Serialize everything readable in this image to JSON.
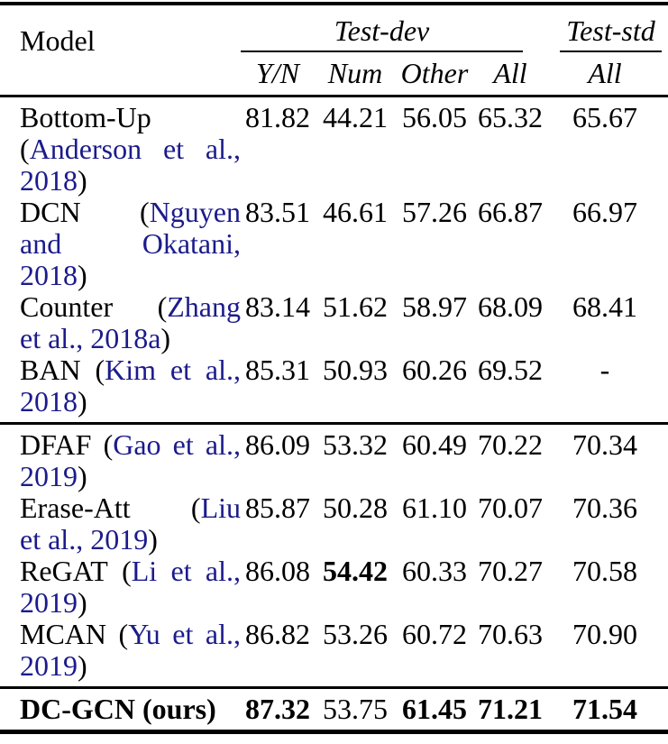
{
  "colors": {
    "background": "#ffffff",
    "text": "#000000",
    "citation_link": "#1b1b8c",
    "rule": "#000000"
  },
  "header": {
    "model_label": "Model",
    "groups": [
      {
        "label": "Test-dev",
        "columns": [
          "Y/N",
          "Num",
          "Other",
          "All"
        ]
      },
      {
        "label": "Test-std",
        "columns": [
          "All"
        ]
      }
    ]
  },
  "sections": [
    {
      "rows": [
        {
          "model_lines": [
            {
              "justify": true,
              "words": [
                [
                  {
                    "t": "Bottom-Up",
                    "cite": false
                  }
                ]
              ]
            },
            {
              "justify": true,
              "words": [
                [
                  {
                    "t": "(",
                    "cite": false
                  },
                  {
                    "t": "Anderson",
                    "cite": true
                  }
                ],
                [
                  {
                    "t": "et",
                    "cite": true
                  }
                ],
                [
                  {
                    "t": "al.,",
                    "cite": true
                  }
                ]
              ]
            },
            {
              "justify": false,
              "words": [
                [
                  {
                    "t": "2018",
                    "cite": true
                  },
                  {
                    "t": ")",
                    "cite": false
                  }
                ]
              ]
            }
          ],
          "bold_model": false,
          "values": [
            {
              "t": "81.82",
              "bold": false
            },
            {
              "t": "44.21",
              "bold": false
            },
            {
              "t": "56.05",
              "bold": false
            },
            {
              "t": "65.32",
              "bold": false
            },
            {
              "t": "65.67",
              "bold": false
            }
          ]
        },
        {
          "model_lines": [
            {
              "justify": true,
              "words": [
                [
                  {
                    "t": "DCN",
                    "cite": false
                  }
                ],
                [
                  {
                    "t": "(",
                    "cite": false
                  },
                  {
                    "t": "Nguyen",
                    "cite": true
                  }
                ]
              ]
            },
            {
              "justify": true,
              "words": [
                [
                  {
                    "t": "and",
                    "cite": true
                  }
                ],
                [
                  {
                    "t": "Okatani,",
                    "cite": true
                  }
                ]
              ]
            },
            {
              "justify": false,
              "words": [
                [
                  {
                    "t": "2018",
                    "cite": true
                  },
                  {
                    "t": ")",
                    "cite": false
                  }
                ]
              ]
            }
          ],
          "bold_model": false,
          "values": [
            {
              "t": "83.51",
              "bold": false
            },
            {
              "t": "46.61",
              "bold": false
            },
            {
              "t": "57.26",
              "bold": false
            },
            {
              "t": "66.87",
              "bold": false
            },
            {
              "t": "66.97",
              "bold": false
            }
          ]
        },
        {
          "model_lines": [
            {
              "justify": true,
              "words": [
                [
                  {
                    "t": "Counter",
                    "cite": false
                  }
                ],
                [
                  {
                    "t": "(",
                    "cite": false
                  },
                  {
                    "t": "Zhang",
                    "cite": true
                  }
                ]
              ]
            },
            {
              "justify": false,
              "words": [
                [
                  {
                    "t": "et",
                    "cite": true
                  }
                ],
                [
                  {
                    "t": "al.,",
                    "cite": true
                  }
                ],
                [
                  {
                    "t": "2018a",
                    "cite": true
                  },
                  {
                    "t": ")",
                    "cite": false
                  }
                ]
              ]
            }
          ],
          "bold_model": false,
          "values": [
            {
              "t": "83.14",
              "bold": false
            },
            {
              "t": "51.62",
              "bold": false
            },
            {
              "t": "58.97",
              "bold": false
            },
            {
              "t": "68.09",
              "bold": false
            },
            {
              "t": "68.41",
              "bold": false
            }
          ]
        },
        {
          "model_lines": [
            {
              "justify": true,
              "words": [
                [
                  {
                    "t": "BAN",
                    "cite": false
                  }
                ],
                [
                  {
                    "t": "(",
                    "cite": false
                  },
                  {
                    "t": "Kim",
                    "cite": true
                  }
                ],
                [
                  {
                    "t": "et",
                    "cite": true
                  }
                ],
                [
                  {
                    "t": "al.,",
                    "cite": true
                  }
                ]
              ]
            },
            {
              "justify": false,
              "words": [
                [
                  {
                    "t": "2018",
                    "cite": true
                  },
                  {
                    "t": ")",
                    "cite": false
                  }
                ]
              ]
            }
          ],
          "bold_model": false,
          "values": [
            {
              "t": "85.31",
              "bold": false
            },
            {
              "t": "50.93",
              "bold": false
            },
            {
              "t": "60.26",
              "bold": false
            },
            {
              "t": "69.52",
              "bold": false
            },
            {
              "t": "-",
              "bold": false
            }
          ]
        }
      ]
    },
    {
      "rows": [
        {
          "model_lines": [
            {
              "justify": true,
              "words": [
                [
                  {
                    "t": "DFAF",
                    "cite": false
                  }
                ],
                [
                  {
                    "t": "(",
                    "cite": false
                  },
                  {
                    "t": "Gao",
                    "cite": true
                  }
                ],
                [
                  {
                    "t": "et",
                    "cite": true
                  }
                ],
                [
                  {
                    "t": "al.,",
                    "cite": true
                  }
                ]
              ]
            },
            {
              "justify": false,
              "words": [
                [
                  {
                    "t": "2019",
                    "cite": true
                  },
                  {
                    "t": ")",
                    "cite": false
                  }
                ]
              ]
            }
          ],
          "bold_model": false,
          "values": [
            {
              "t": "86.09",
              "bold": false
            },
            {
              "t": "53.32",
              "bold": false
            },
            {
              "t": "60.49",
              "bold": false
            },
            {
              "t": "70.22",
              "bold": false
            },
            {
              "t": "70.34",
              "bold": false
            }
          ]
        },
        {
          "model_lines": [
            {
              "justify": true,
              "words": [
                [
                  {
                    "t": "Erase-Att",
                    "cite": false
                  }
                ],
                [
                  {
                    "t": "(",
                    "cite": false
                  },
                  {
                    "t": "Liu",
                    "cite": true
                  }
                ]
              ]
            },
            {
              "justify": false,
              "words": [
                [
                  {
                    "t": "et",
                    "cite": true
                  }
                ],
                [
                  {
                    "t": "al.,",
                    "cite": true
                  }
                ],
                [
                  {
                    "t": "2019",
                    "cite": true
                  },
                  {
                    "t": ")",
                    "cite": false
                  }
                ]
              ]
            }
          ],
          "bold_model": false,
          "values": [
            {
              "t": "85.87",
              "bold": false
            },
            {
              "t": "50.28",
              "bold": false
            },
            {
              "t": "61.10",
              "bold": false
            },
            {
              "t": "70.07",
              "bold": false
            },
            {
              "t": "70.36",
              "bold": false
            }
          ]
        },
        {
          "model_lines": [
            {
              "justify": true,
              "words": [
                [
                  {
                    "t": "ReGAT",
                    "cite": false
                  }
                ],
                [
                  {
                    "t": "(",
                    "cite": false
                  },
                  {
                    "t": "Li",
                    "cite": true
                  }
                ],
                [
                  {
                    "t": "et",
                    "cite": true
                  }
                ],
                [
                  {
                    "t": "al.,",
                    "cite": true
                  }
                ]
              ]
            },
            {
              "justify": false,
              "words": [
                [
                  {
                    "t": "2019",
                    "cite": true
                  },
                  {
                    "t": ")",
                    "cite": false
                  }
                ]
              ]
            }
          ],
          "bold_model": false,
          "values": [
            {
              "t": "86.08",
              "bold": false
            },
            {
              "t": "54.42",
              "bold": true
            },
            {
              "t": "60.33",
              "bold": false
            },
            {
              "t": "70.27",
              "bold": false
            },
            {
              "t": "70.58",
              "bold": false
            }
          ]
        },
        {
          "model_lines": [
            {
              "justify": true,
              "words": [
                [
                  {
                    "t": "MCAN",
                    "cite": false
                  }
                ],
                [
                  {
                    "t": "(",
                    "cite": false
                  },
                  {
                    "t": "Yu",
                    "cite": true
                  }
                ],
                [
                  {
                    "t": "et",
                    "cite": true
                  }
                ],
                [
                  {
                    "t": "al.,",
                    "cite": true
                  }
                ]
              ]
            },
            {
              "justify": false,
              "words": [
                [
                  {
                    "t": "2019",
                    "cite": true
                  },
                  {
                    "t": ")",
                    "cite": false
                  }
                ]
              ]
            }
          ],
          "bold_model": false,
          "values": [
            {
              "t": "86.82",
              "bold": false
            },
            {
              "t": "53.26",
              "bold": false
            },
            {
              "t": "60.72",
              "bold": false
            },
            {
              "t": "70.63",
              "bold": false
            },
            {
              "t": "70.90",
              "bold": false
            }
          ]
        }
      ]
    },
    {
      "rows": [
        {
          "model_lines": [
            {
              "justify": false,
              "words": [
                [
                  {
                    "t": "DC-GCN",
                    "cite": false
                  }
                ],
                [
                  {
                    "t": "(ours)",
                    "cite": false
                  }
                ]
              ]
            }
          ],
          "bold_model": true,
          "values": [
            {
              "t": "87.32",
              "bold": true
            },
            {
              "t": "53.75",
              "bold": false
            },
            {
              "t": "61.45",
              "bold": true
            },
            {
              "t": "71.21",
              "bold": true
            },
            {
              "t": "71.54",
              "bold": true
            }
          ]
        }
      ]
    }
  ]
}
